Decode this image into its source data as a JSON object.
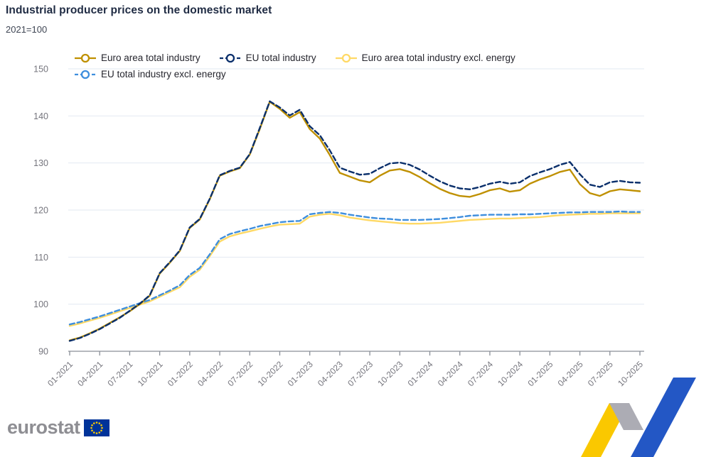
{
  "header": {
    "title": "Industrial producer prices on the domestic market",
    "subtitle": "2021=100"
  },
  "footer": {
    "brand_text": "eurostat"
  },
  "branding": {
    "flag_blue": "#003399",
    "star_yellow": "#FFCC00",
    "wordmark_gray": "#8E8E93",
    "ribbon_yellow": "#FAC800",
    "ribbon_gray": "#ACACB4",
    "ribbon_blue": "#2357C5"
  },
  "axis_style": {
    "grid_color": "#E2E9F2",
    "axis_color": "#8A8F98",
    "label_color": "#75757D"
  },
  "chart_data": {
    "type": "line",
    "title": "Industrial producer prices on the domestic market",
    "subtitle": "2021=100",
    "grid": true,
    "legend_position": "top",
    "ylim": [
      90,
      150
    ],
    "y_ticks": [
      90,
      100,
      110,
      120,
      130,
      140,
      150
    ],
    "x_tick_labels": [
      "01-2021",
      "04-2021",
      "07-2021",
      "10-2021",
      "01-2022",
      "04-2022",
      "07-2022",
      "10-2022",
      "01-2023",
      "04-2023",
      "07-2023",
      "10-2023",
      "01-2024",
      "04-2024",
      "07-2024",
      "10-2024",
      "01-2025",
      "04-2025",
      "07-2025",
      "10-2025"
    ],
    "x_months": [
      "01-2021",
      "02-2021",
      "03-2021",
      "04-2021",
      "05-2021",
      "06-2021",
      "07-2021",
      "08-2021",
      "09-2021",
      "10-2021",
      "11-2021",
      "12-2021",
      "01-2022",
      "02-2022",
      "03-2022",
      "04-2022",
      "05-2022",
      "06-2022",
      "07-2022",
      "08-2022",
      "09-2022",
      "10-2022",
      "11-2022",
      "12-2022",
      "01-2023",
      "02-2023",
      "03-2023",
      "04-2023",
      "05-2023",
      "06-2023",
      "07-2023",
      "08-2023",
      "09-2023",
      "10-2023",
      "11-2023",
      "12-2023",
      "01-2024",
      "02-2024",
      "03-2024",
      "04-2024",
      "05-2024",
      "06-2024",
      "07-2024",
      "08-2024",
      "09-2024",
      "10-2024",
      "11-2024",
      "12-2024",
      "01-2025",
      "02-2025",
      "03-2025",
      "04-2025",
      "05-2025",
      "06-2025",
      "07-2025",
      "08-2025",
      "09-2025",
      "10-2025"
    ],
    "series": [
      {
        "id": "euro-area-total-industry",
        "name": "Euro area total industry",
        "color": "#BF9000",
        "dash": false,
        "values": [
          92.3,
          92.9,
          93.8,
          94.8,
          96.0,
          97.2,
          98.5,
          100.0,
          101.8,
          106.5,
          108.8,
          111.3,
          116.2,
          118.0,
          122.3,
          127.3,
          128.2,
          128.9,
          131.8,
          137.2,
          143.0,
          141.5,
          139.6,
          140.8,
          137.2,
          135.2,
          131.7,
          127.9,
          127.1,
          126.3,
          125.9,
          127.3,
          128.4,
          128.7,
          128.1,
          127.0,
          125.7,
          124.5,
          123.6,
          123.0,
          122.8,
          123.4,
          124.2,
          124.6,
          123.9,
          124.2,
          125.6,
          126.5,
          127.2,
          128.1,
          128.6,
          125.5,
          123.6,
          123.0,
          124.0,
          124.4,
          124.2,
          124.0
        ]
      },
      {
        "id": "eu-total-industry",
        "name": "EU total industry",
        "color": "#0A2F6B",
        "dash": true,
        "values": [
          92.2,
          92.8,
          93.7,
          94.7,
          95.9,
          97.1,
          98.6,
          100.1,
          101.9,
          106.6,
          108.9,
          111.4,
          116.3,
          118.1,
          122.4,
          127.4,
          128.3,
          129.0,
          131.9,
          137.4,
          143.1,
          141.8,
          140.1,
          141.3,
          137.8,
          135.9,
          132.7,
          129.0,
          128.2,
          127.5,
          127.7,
          128.9,
          129.9,
          130.1,
          129.6,
          128.6,
          127.3,
          126.1,
          125.2,
          124.6,
          124.4,
          124.9,
          125.6,
          126.0,
          125.6,
          125.9,
          127.2,
          128.0,
          128.7,
          129.6,
          130.2,
          127.6,
          125.4,
          124.9,
          125.9,
          126.2,
          125.9,
          125.8
        ]
      },
      {
        "id": "euro-area-total-industry-excl-energy",
        "name": "Euro area total industry excl. energy",
        "color": "#FFD966",
        "dash": false,
        "values": [
          95.4,
          95.9,
          96.5,
          97.1,
          97.8,
          98.5,
          99.2,
          99.9,
          100.6,
          101.6,
          102.6,
          103.6,
          105.8,
          107.3,
          110.2,
          113.3,
          114.4,
          115.0,
          115.5,
          116.0,
          116.5,
          116.9,
          117.0,
          117.1,
          118.6,
          119.0,
          119.2,
          118.9,
          118.4,
          118.1,
          117.8,
          117.6,
          117.4,
          117.2,
          117.1,
          117.1,
          117.2,
          117.3,
          117.5,
          117.7,
          117.9,
          118.0,
          118.1,
          118.2,
          118.2,
          118.3,
          118.4,
          118.5,
          118.7,
          118.9,
          119.0,
          119.1,
          119.2,
          119.2,
          119.3,
          119.3,
          119.3,
          119.3
        ]
      },
      {
        "id": "eu-total-industry-excl-energy",
        "name": "EU total industry excl. energy",
        "color": "#3E8EDD",
        "dash": true,
        "values": [
          95.7,
          96.2,
          96.8,
          97.4,
          98.1,
          98.8,
          99.5,
          100.2,
          100.9,
          101.9,
          102.9,
          104.0,
          106.2,
          107.7,
          110.6,
          113.8,
          114.9,
          115.5,
          116.0,
          116.6,
          117.0,
          117.4,
          117.6,
          117.7,
          119.1,
          119.4,
          119.6,
          119.4,
          119.0,
          118.7,
          118.4,
          118.2,
          118.1,
          117.9,
          117.9,
          117.9,
          118.0,
          118.1,
          118.3,
          118.5,
          118.8,
          118.9,
          119.0,
          119.0,
          119.0,
          119.1,
          119.1,
          119.2,
          119.3,
          119.4,
          119.5,
          119.5,
          119.6,
          119.6,
          119.6,
          119.7,
          119.6,
          119.6
        ]
      }
    ]
  }
}
